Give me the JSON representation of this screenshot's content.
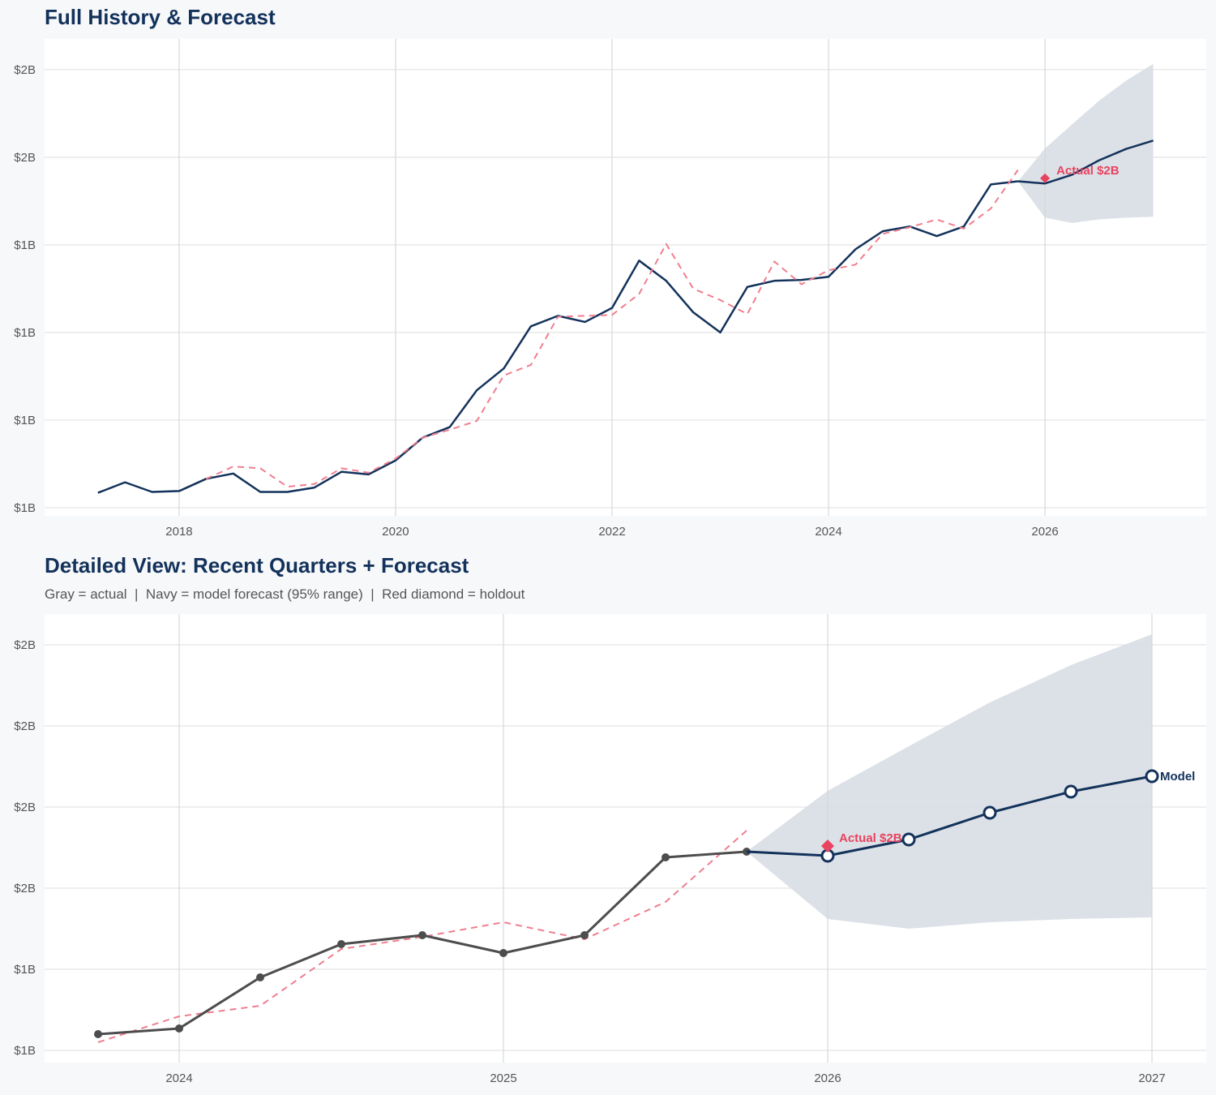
{
  "colors": {
    "navy": "#13325b",
    "gray_actual": "#4d4d4d",
    "red": "#e8435f",
    "red_dashed": "#ef7e8f",
    "band": "#dadfe6",
    "grid": "#e3e3e3"
  },
  "chart_data": [
    {
      "type": "line",
      "title": "Full History & Forecast",
      "xlim": [
        2016.757,
        2027.49
      ],
      "ylim": [
        1.1407,
        1.685
      ],
      "grid": true,
      "x_ticks": [
        2018,
        2020,
        2022,
        2024,
        2026
      ],
      "x_tick_labels": [
        "2018",
        "2020",
        "2022",
        "2024",
        "2026"
      ],
      "y_ticks": [
        1.15,
        1.25,
        1.35,
        1.45,
        1.55,
        1.65
      ],
      "y_tick_labels": [
        "$1B",
        "$1B",
        "$1B",
        "$1B",
        "$2B",
        "$2B"
      ],
      "series": [
        {
          "role": "actual",
          "style": "solid-navy",
          "x": [
            2017.25,
            2017.5,
            2017.75,
            2018.0,
            2018.25,
            2018.5,
            2018.75,
            2019.0,
            2019.25,
            2019.5,
            2019.75,
            2020.0,
            2020.25,
            2020.5,
            2020.75,
            2021.0,
            2021.25,
            2021.5,
            2021.75,
            2022.0,
            2022.25,
            2022.5,
            2022.75,
            2023.0,
            2023.25,
            2023.5,
            2023.75,
            2024.0,
            2024.25,
            2024.5,
            2024.75,
            2025.0,
            2025.25,
            2025.5,
            2025.75
          ],
          "y": [
            1.167,
            1.179,
            1.168,
            1.169,
            1.183,
            1.189,
            1.168,
            1.168,
            1.173,
            1.191,
            1.188,
            1.204,
            1.23,
            1.242,
            1.284,
            1.309,
            1.357,
            1.369,
            1.362,
            1.378,
            1.432,
            1.409,
            1.373,
            1.35,
            1.402,
            1.409,
            1.41,
            1.4135,
            1.445,
            1.4655,
            1.471,
            1.46,
            1.471,
            1.519,
            1.5225
          ]
        },
        {
          "role": "fitted",
          "style": "dashed-red",
          "x": [
            2018.25,
            2018.5,
            2018.75,
            2019.0,
            2019.25,
            2019.5,
            2019.75,
            2020.0,
            2020.25,
            2020.5,
            2020.75,
            2021.0,
            2021.25,
            2021.5,
            2021.75,
            2022.0,
            2022.25,
            2022.5,
            2022.75,
            2023.0,
            2023.25,
            2023.5,
            2023.75,
            2024.0,
            2024.25,
            2024.5,
            2024.75,
            2025.0,
            2025.25,
            2025.5,
            2025.75
          ],
          "y": [
            1.183,
            1.197,
            1.195,
            1.174,
            1.177,
            1.195,
            1.19,
            1.206,
            1.23,
            1.239,
            1.249,
            1.301,
            1.313,
            1.368,
            1.369,
            1.37,
            1.394,
            1.451,
            1.4,
            1.387,
            1.371,
            1.431,
            1.405,
            1.421,
            1.4275,
            1.4625,
            1.47,
            1.479,
            1.4685,
            1.4915,
            1.5355
          ]
        },
        {
          "role": "forecast",
          "style": "solid-navy",
          "x": [
            2025.75,
            2026.0,
            2026.25,
            2026.5,
            2026.75,
            2027.0
          ],
          "y": [
            1.5225,
            1.52,
            1.53,
            1.5465,
            1.5595,
            1.569
          ]
        }
      ],
      "band": {
        "label": "95% range",
        "x": [
          2025.75,
          2026.0,
          2026.25,
          2026.5,
          2026.75,
          2027.0
        ],
        "upper": [
          1.5225,
          1.56,
          1.5875,
          1.6145,
          1.6375,
          1.6565
        ],
        "lower": [
          1.5225,
          1.481,
          1.475,
          1.479,
          1.481,
          1.482
        ]
      },
      "holdout": {
        "x": 2026.0,
        "y": 1.526,
        "label": "Actual $2B"
      }
    },
    {
      "type": "line",
      "title": "Detailed View: Recent Quarters + Forecast",
      "subtitle": "Gray = actual  |  Navy = model forecast (95% range)  |  Red diamond = holdout",
      "xlim": [
        2023.585,
        2027.1675
      ],
      "ylim": [
        1.3925,
        1.669
      ],
      "grid": true,
      "x_ticks": [
        2024,
        2025,
        2026,
        2027
      ],
      "x_tick_labels": [
        "2024",
        "2025",
        "2026",
        "2027"
      ],
      "y_ticks": [
        1.4,
        1.45,
        1.5,
        1.55,
        1.6,
        1.65
      ],
      "y_tick_labels": [
        "$1B",
        "$1B",
        "$2B",
        "$2B",
        "$2B",
        "$2B"
      ],
      "series": [
        {
          "role": "fitted",
          "style": "dashed-red",
          "x": [
            2023.75,
            2024.0,
            2024.25,
            2024.5,
            2024.75,
            2025.0,
            2025.25,
            2025.5,
            2025.75
          ],
          "y": [
            1.405,
            1.421,
            1.4275,
            1.4625,
            1.47,
            1.479,
            1.4685,
            1.4915,
            1.5355
          ]
        },
        {
          "role": "actual",
          "style": "solid-gray-markers",
          "x": [
            2023.75,
            2024.0,
            2024.25,
            2024.5,
            2024.75,
            2025.0,
            2025.25,
            2025.5,
            2025.75
          ],
          "y": [
            1.41,
            1.4135,
            1.445,
            1.4655,
            1.471,
            1.46,
            1.471,
            1.519,
            1.5225
          ]
        },
        {
          "role": "forecast",
          "style": "solid-navy-open-markers",
          "end_label": "Model",
          "x": [
            2025.75,
            2026.0,
            2026.25,
            2026.5,
            2026.75,
            2027.0
          ],
          "y": [
            1.5225,
            1.52,
            1.53,
            1.5465,
            1.5595,
            1.569
          ]
        }
      ],
      "band": {
        "label": "95% range",
        "x": [
          2025.75,
          2026.0,
          2026.25,
          2026.5,
          2026.75,
          2027.0
        ],
        "upper": [
          1.5225,
          1.56,
          1.5875,
          1.6145,
          1.6375,
          1.6565
        ],
        "lower": [
          1.5225,
          1.481,
          1.475,
          1.479,
          1.481,
          1.482
        ]
      },
      "holdout": {
        "x": 2026.0,
        "y": 1.526,
        "label": "Actual $2B"
      }
    }
  ]
}
